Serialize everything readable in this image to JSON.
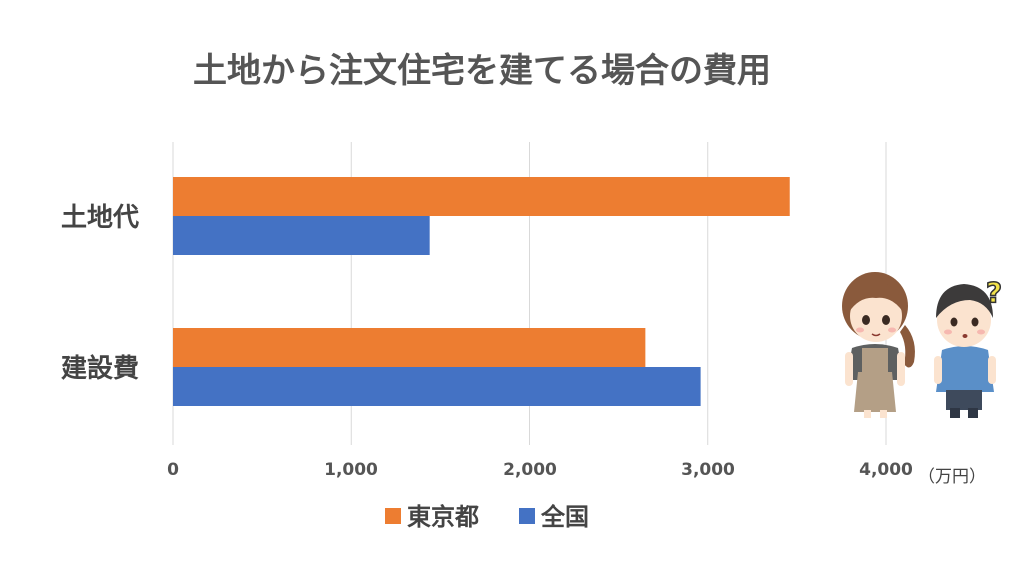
{
  "chart_data": {
    "type": "bar",
    "orientation": "horizontal",
    "title": "土地から注文住宅を建てる場合の費用",
    "categories": [
      "土地代",
      "建設費"
    ],
    "series": [
      {
        "name": "東京都",
        "color": "#ED7D31",
        "values": [
          3460,
          2650
        ]
      },
      {
        "name": "全国",
        "color": "#4472C4",
        "values": [
          1440,
          2960
        ]
      }
    ],
    "xlim": [
      0,
      4000
    ],
    "xticks": [
      0,
      1000,
      2000,
      3000,
      4000
    ],
    "tick_labels": [
      "0",
      "1,000",
      "2,000",
      "3,000",
      "4,000"
    ],
    "unit": "（万円）",
    "grid": true,
    "legend": "bottom"
  },
  "illustration": {
    "icons": [
      "woman-character-icon",
      "confused-boy-character-icon",
      "question-mark-icon"
    ],
    "question_mark": "?"
  }
}
